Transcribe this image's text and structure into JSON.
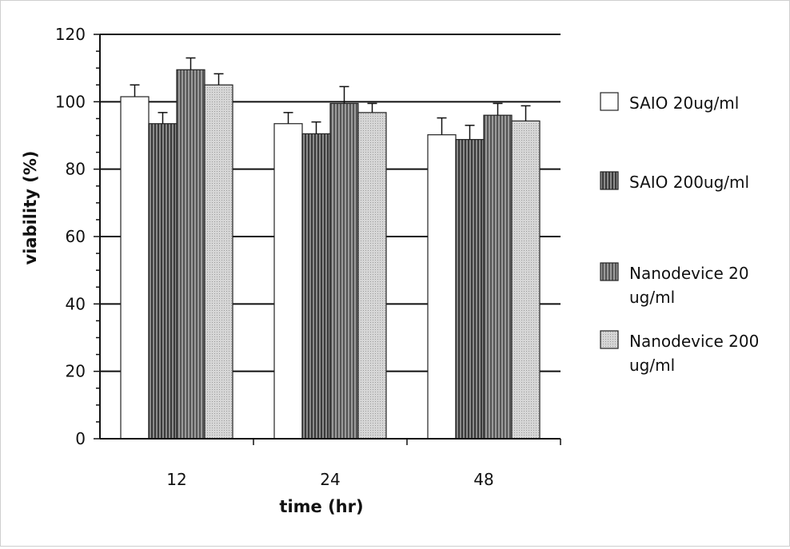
{
  "chart_data": {
    "type": "bar",
    "title": "",
    "xlabel": "time (hr)",
    "ylabel": "viability (%)",
    "ylim": [
      0,
      120
    ],
    "yticks": [
      0,
      20,
      40,
      60,
      80,
      100,
      120
    ],
    "grid": true,
    "legend_position": "right",
    "categories": [
      "12",
      "24",
      "48"
    ],
    "series": [
      {
        "name": "SAIO 20ug/ml",
        "name_lines": [
          "SAIO 20ug/ml"
        ],
        "values": [
          101.5,
          93.5,
          90.2
        ],
        "errors": [
          3.5,
          3.3,
          5.0
        ],
        "fill": "#ffffff",
        "pattern": "none"
      },
      {
        "name": "SAIO 200ug/ml",
        "name_lines": [
          "SAIO 200ug/ml"
        ],
        "values": [
          93.5,
          90.5,
          88.8
        ],
        "errors": [
          3.3,
          3.5,
          4.2
        ],
        "fill": "#6e6e6e",
        "pattern": "vstripe-dark"
      },
      {
        "name": "Nanodevice 20 ug/ml",
        "name_lines": [
          "Nanodevice 20",
          "ug/ml"
        ],
        "values": [
          109.5,
          99.5,
          96.0
        ],
        "errors": [
          3.5,
          5.0,
          3.5
        ],
        "fill": "#888888",
        "pattern": "vstripe-mid"
      },
      {
        "name": "Nanodevice 200 ug/ml",
        "name_lines": [
          "Nanodevice 200",
          "ug/ml"
        ],
        "values": [
          105.0,
          96.8,
          94.3
        ],
        "errors": [
          3.3,
          2.7,
          4.5
        ],
        "fill": "#c8c8c8",
        "pattern": "dots-light"
      }
    ]
  }
}
